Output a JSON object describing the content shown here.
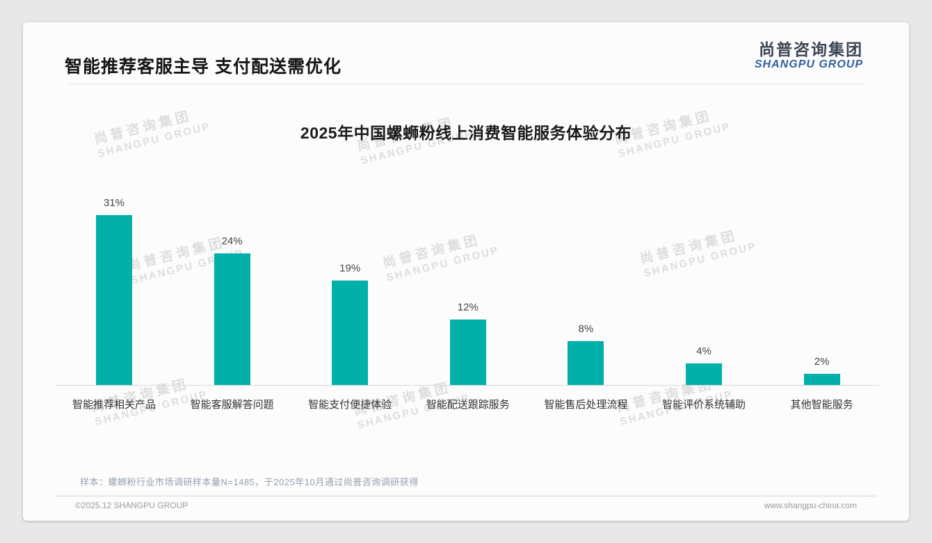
{
  "page": {
    "title": "智能推荐客服主导 支付配送需优化",
    "logo": {
      "cn": "尚普咨询集团",
      "en": "SHANGPU GROUP"
    },
    "watermark": {
      "cn": "尚普咨询集团",
      "en": "SHANGPU GROUP"
    },
    "note": "样本：螺蛳粉行业市场调研样本量N=1485，于2025年10月通过尚普咨询调研获得",
    "footer": {
      "left": "©2025.12 SHANGPU GROUP",
      "right": "www.shangpu-china.com"
    },
    "colors": {
      "bar": "#00b0a9",
      "logo_blue": "#2f5fa0",
      "title_text": "#141414"
    }
  },
  "chart_data": {
    "type": "bar",
    "title": "2025年中国螺蛳粉线上消费智能服务体验分布",
    "categories": [
      "智能推荐相关产品",
      "智能客服解答问题",
      "智能支付便捷体验",
      "智能配送跟踪服务",
      "智能售后处理流程",
      "智能评价系统辅助",
      "其他智能服务"
    ],
    "values": [
      31,
      24,
      19,
      12,
      8,
      4,
      2
    ],
    "data_labels": [
      "31%",
      "24%",
      "19%",
      "12%",
      "8%",
      "4%",
      "2%"
    ],
    "unit": "%",
    "xlabel": "",
    "ylabel": "",
    "ylim": [
      0,
      33
    ],
    "grid": false,
    "legend": "none",
    "bar_color": "#00b0a9"
  }
}
